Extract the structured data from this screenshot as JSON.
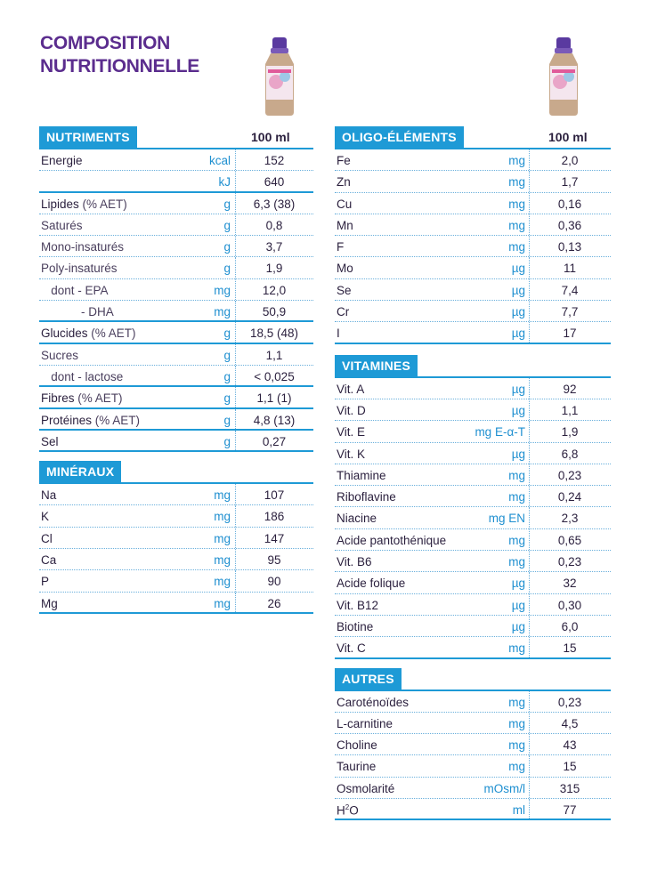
{
  "title": {
    "line1": "COMPOSITION",
    "line2": "NUTRITIONNELLE"
  },
  "col_header": "100 ml",
  "nutriments": {
    "label": "NUTRIMENTS",
    "rows": [
      {
        "name": "Energie",
        "unit": "kcal",
        "val": "152"
      },
      {
        "name": "",
        "unit": "kJ",
        "val": "640"
      },
      {
        "name": "Lipides",
        "pct": " (% AET)",
        "unit": "g",
        "val": "6,3 (38)"
      },
      {
        "name": "Saturés",
        "unit": "g",
        "val": "0,8"
      },
      {
        "name": "Mono-insaturés",
        "unit": "g",
        "val": "3,7"
      },
      {
        "name": "Poly-insaturés",
        "unit": "g",
        "val": "1,9"
      },
      {
        "name": "   dont - EPA",
        "unit": "mg",
        "val": "12,0"
      },
      {
        "name": "            - DHA",
        "unit": "mg",
        "val": "50,9"
      },
      {
        "name": "Glucides",
        "pct": " (% AET)",
        "unit": "g",
        "val": "18,5 (48)"
      },
      {
        "name": "Sucres",
        "unit": "g",
        "val": "1,1"
      },
      {
        "name": "   dont - lactose",
        "unit": "g",
        "val": "< 0,025"
      },
      {
        "name": "Fibres",
        "pct": " (% AET)",
        "unit": "g",
        "val": "1,1 (1)"
      },
      {
        "name": "Protéines",
        "pct": " (% AET)",
        "unit": "g",
        "val": "4,8 (13)"
      },
      {
        "name": "Sel",
        "unit": "g",
        "val": "0,27"
      }
    ]
  },
  "mineraux": {
    "label": "MINÉRAUX",
    "rows": [
      {
        "name": "Na",
        "unit": "mg",
        "val": "107"
      },
      {
        "name": "K",
        "unit": "mg",
        "val": "186"
      },
      {
        "name": "Cl",
        "unit": "mg",
        "val": "147"
      },
      {
        "name": "Ca",
        "unit": "mg",
        "val": "95"
      },
      {
        "name": "P",
        "unit": "mg",
        "val": "90"
      },
      {
        "name": "Mg",
        "unit": "mg",
        "val": "26"
      }
    ]
  },
  "oligo": {
    "label": "OLIGO-ÉLÉMENTS",
    "rows": [
      {
        "name": "Fe",
        "unit": "mg",
        "val": "2,0"
      },
      {
        "name": "Zn",
        "unit": "mg",
        "val": "1,7"
      },
      {
        "name": "Cu",
        "unit": "mg",
        "val": "0,16"
      },
      {
        "name": "Mn",
        "unit": "mg",
        "val": "0,36"
      },
      {
        "name": "F",
        "unit": "mg",
        "val": "0,13"
      },
      {
        "name": "Mo",
        "unit": "µg",
        "val": "11"
      },
      {
        "name": "Se",
        "unit": "µg",
        "val": "7,4"
      },
      {
        "name": "Cr",
        "unit": "µg",
        "val": "7,7"
      },
      {
        "name": "I",
        "unit": "µg",
        "val": "17"
      }
    ]
  },
  "vitamines": {
    "label": "VITAMINES",
    "rows": [
      {
        "name": "Vit. A",
        "unit": "µg",
        "val": "92"
      },
      {
        "name": "Vit. D",
        "unit": "µg",
        "val": "1,1"
      },
      {
        "name": "Vit. E",
        "unit": "mg E-α-T",
        "val": "1,9"
      },
      {
        "name": "Vit. K",
        "unit": "µg",
        "val": "6,8"
      },
      {
        "name": "Thiamine",
        "unit": "mg",
        "val": "0,23"
      },
      {
        "name": "Riboflavine",
        "unit": "mg",
        "val": "0,24"
      },
      {
        "name": "Niacine",
        "unit": "mg EN",
        "val": "2,3"
      },
      {
        "name": "Acide pantothénique",
        "unit": "mg",
        "val": "0,65"
      },
      {
        "name": "Vit. B6",
        "unit": "mg",
        "val": "0,23"
      },
      {
        "name": "Acide folique",
        "unit": "µg",
        "val": "32"
      },
      {
        "name": "Vit. B12",
        "unit": "µg",
        "val": "0,30"
      },
      {
        "name": "Biotine",
        "unit": "µg",
        "val": "6,0"
      },
      {
        "name": "Vit. C",
        "unit": "mg",
        "val": "15"
      }
    ]
  },
  "autres": {
    "label": "AUTRES",
    "rows": [
      {
        "name": "Caroténoïdes",
        "unit": "mg",
        "val": "0,23"
      },
      {
        "name": "L-carnitine",
        "unit": "mg",
        "val": "4,5"
      },
      {
        "name": "Choline",
        "unit": "mg",
        "val": "43"
      },
      {
        "name": "Taurine",
        "unit": "mg",
        "val": "15"
      },
      {
        "name": "Osmolarité",
        "unit": "mOsm/l",
        "val": "315"
      },
      {
        "name": "H",
        "sup": "2",
        "name_tail": "O",
        "unit": "ml",
        "val": "77"
      }
    ]
  },
  "colors": {
    "title": "#5b2d8e",
    "header_bg": "#1e9ad6",
    "unit": "#1e8fd0"
  },
  "icons": [
    "bottle-product-icon"
  ]
}
